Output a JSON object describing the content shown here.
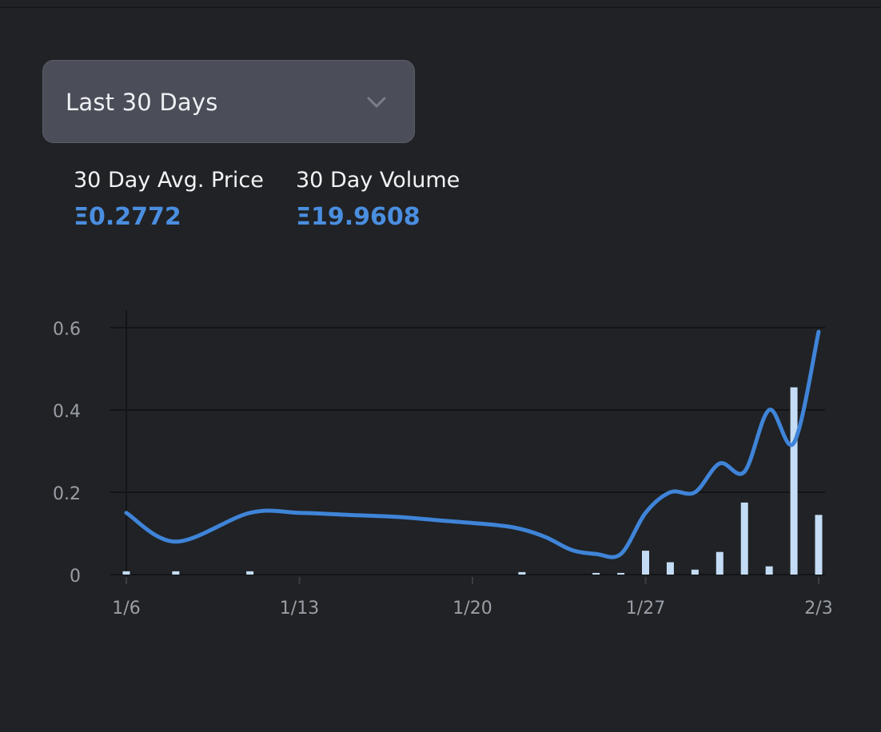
{
  "range_select": {
    "value": "Last 30 Days"
  },
  "stats": {
    "avg_price": {
      "label": "30 Day Avg. Price",
      "value": "Ξ0.2772"
    },
    "volume": {
      "label": "30 Day Volume",
      "value": "Ξ19.9608"
    }
  },
  "colors": {
    "background": "#202225",
    "price_line": "#3f84d8",
    "volume_bar": "#c4dcf5",
    "grid": "#121417",
    "tick_text": "#9a9ea6",
    "accent": "#4a8ee0"
  },
  "icons": {
    "select_arrow": "chevron-down-icon"
  },
  "chart_data": {
    "type": "line",
    "title": "",
    "xlabel": "",
    "ylabel": "",
    "ylim": [
      0,
      0.6
    ],
    "yticks": [
      "0",
      "0.2",
      "0.4",
      "0.6"
    ],
    "xlim": [
      6,
      34
    ],
    "xticks": [
      {
        "x": 6,
        "label": "1/6"
      },
      {
        "x": 13,
        "label": "1/13"
      },
      {
        "x": 20,
        "label": "1/20"
      },
      {
        "x": 27,
        "label": "1/27"
      },
      {
        "x": 34,
        "label": "2/3"
      }
    ],
    "grid": true,
    "series": [
      {
        "kind": "line",
        "x": [
          6,
          8,
          11,
          13,
          15,
          17,
          19,
          21,
          22,
          23,
          24,
          25,
          26,
          27,
          28,
          29,
          30,
          31,
          32,
          33,
          34
        ],
        "y": [
          0.15,
          0.08,
          0.15,
          0.15,
          0.145,
          0.14,
          0.13,
          0.12,
          0.11,
          0.09,
          0.06,
          0.05,
          0.05,
          0.15,
          0.2,
          0.2,
          0.27,
          0.25,
          0.4,
          0.32,
          0.59
        ]
      },
      {
        "kind": "bar",
        "x": [
          6,
          8,
          11,
          22,
          25,
          26,
          27,
          28,
          29,
          30,
          31,
          32,
          33,
          34
        ],
        "y": [
          0.008,
          0.008,
          0.008,
          0.006,
          0.004,
          0.004,
          0.058,
          0.03,
          0.012,
          0.055,
          0.175,
          0.02,
          0.455,
          0.145
        ]
      }
    ]
  }
}
